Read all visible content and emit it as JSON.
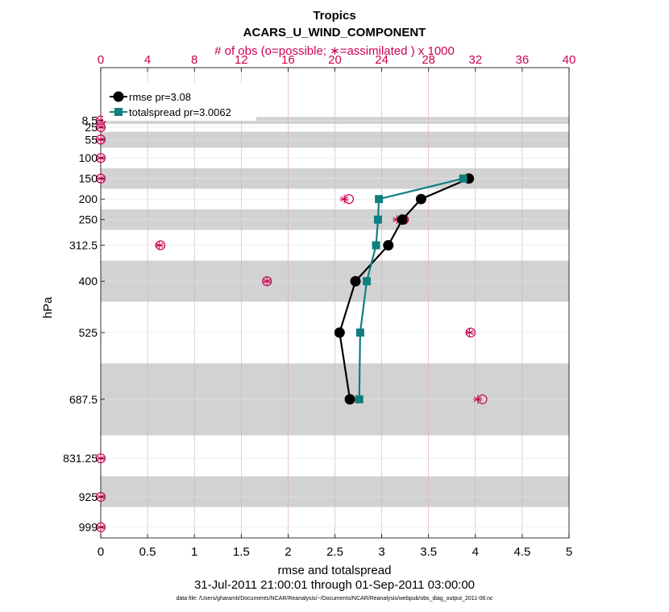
{
  "chart_data": {
    "type": "line",
    "title": "Tropics",
    "subtitle": "ACARS_U_WIND_COMPONENT",
    "top_axis_label": "# of obs (o=possible; ∗=assimilated ) x 1000",
    "xlabel": "rmse and totalspread",
    "ylabel": "hPa",
    "date_range": "31-Jul-2011 21:00:01 through 01-Sep-2011 03:00:00",
    "footnote": "data file: /Users/gharamti/Documents/NCAR/Reanalysis/~/Documents/NCAR/Reanalysis/webpub/obs_diag_output_2011-08.nc",
    "xlim": [
      0,
      5
    ],
    "x_ticks": [
      "0",
      "0.5",
      "1",
      "1.5",
      "2",
      "2.5",
      "3",
      "3.5",
      "4",
      "4.5",
      "5"
    ],
    "x_tick_values": [
      0,
      0.5,
      1,
      1.5,
      2,
      2.5,
      3,
      3.5,
      4,
      4.5,
      5
    ],
    "top_xlim": [
      0,
      40
    ],
    "top_ticks": [
      "0",
      "4",
      "8",
      "12",
      "16",
      "20",
      "24",
      "28",
      "32",
      "36",
      "40"
    ],
    "top_tick_values": [
      0,
      4,
      8,
      12,
      16,
      20,
      24,
      28,
      32,
      36,
      40
    ],
    "ylim": [
      1025,
      -120
    ],
    "y_ticks": [
      "8.5",
      "25",
      "55",
      "100",
      "150",
      "200",
      "250",
      "312.5",
      "400",
      "525",
      "687.5",
      "831.25",
      "925",
      "999"
    ],
    "y_tick_values": [
      8.5,
      25,
      55,
      100,
      150,
      200,
      250,
      312.5,
      400,
      525,
      687.5,
      831.25,
      925,
      999
    ],
    "bands": [
      [
        0,
        17
      ],
      [
        36,
        75
      ],
      [
        125,
        175
      ],
      [
        225,
        275
      ],
      [
        350,
        450
      ],
      [
        600,
        775
      ],
      [
        875,
        950
      ]
    ],
    "series": [
      {
        "name": "rmse",
        "legend": "rmse pr=3.08",
        "color": "#000000",
        "marker": "circle",
        "points": [
          [
            3.93,
            150
          ],
          [
            3.42,
            200
          ],
          [
            3.22,
            250
          ],
          [
            3.07,
            312.5
          ],
          [
            2.72,
            400
          ],
          [
            2.55,
            525
          ],
          [
            2.66,
            687.5
          ]
        ]
      },
      {
        "name": "totalspread",
        "legend": "totalspread pr=3.0062",
        "color": "#0f7f7f",
        "marker": "square",
        "points": [
          [
            3.87,
            150
          ],
          [
            2.97,
            200
          ],
          [
            2.96,
            250
          ],
          [
            2.94,
            312.5
          ],
          [
            2.84,
            400
          ],
          [
            2.77,
            525
          ],
          [
            2.76,
            687.5
          ]
        ]
      }
    ],
    "obs_possible": [
      [
        0,
        8.5
      ],
      [
        0,
        25
      ],
      [
        0,
        55
      ],
      [
        0,
        100
      ],
      [
        0,
        150
      ],
      [
        21.2,
        200
      ],
      [
        25.9,
        250
      ],
      [
        5.1,
        312.5
      ],
      [
        14.2,
        400
      ],
      [
        31.6,
        525
      ],
      [
        32.6,
        687.5
      ],
      [
        0,
        831.25
      ],
      [
        0,
        925
      ],
      [
        0,
        999
      ]
    ],
    "obs_assimilated": [
      [
        0,
        8.5
      ],
      [
        0,
        25
      ],
      [
        0,
        55
      ],
      [
        0,
        100
      ],
      [
        0,
        150
      ],
      [
        20.8,
        200
      ],
      [
        25.3,
        250
      ],
      [
        5.0,
        312.5
      ],
      [
        14.2,
        400
      ],
      [
        31.5,
        525
      ],
      [
        32.2,
        687.5
      ],
      [
        0,
        831.25
      ],
      [
        0,
        925
      ],
      [
        0,
        999
      ]
    ],
    "obs_color": "#cc0052",
    "band_color": "#d2d2d2",
    "grid_color": "#d9a9b9"
  }
}
